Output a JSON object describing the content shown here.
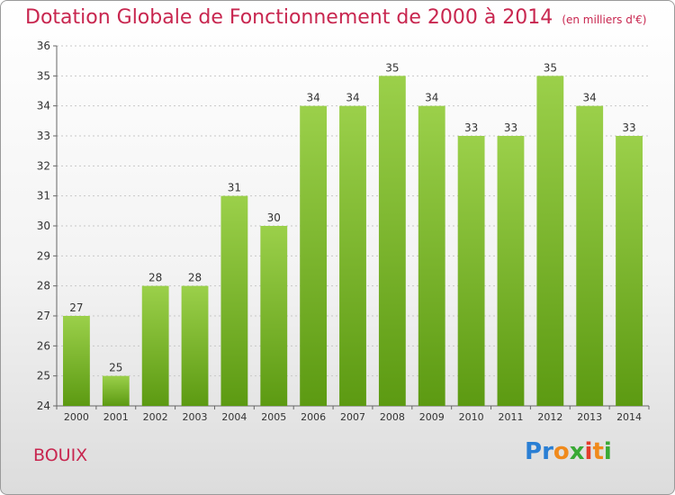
{
  "header": {
    "title": "Dotation Globale de Fonctionnement de 2000 à 2014",
    "unit": "(en milliers d'€)"
  },
  "footer": {
    "commune": "BOUIX",
    "logo": "Proxiti"
  },
  "colors": {
    "title": "#c8264f",
    "bar_top": "#9bd04a",
    "bar_bottom": "#5c9a12",
    "gridline": "#c8c8c8"
  },
  "chart_data": {
    "type": "bar",
    "title": "Dotation Globale de Fonctionnement de 2000 à 2014",
    "xlabel": "",
    "ylabel": "",
    "categories": [
      "2000",
      "2001",
      "2002",
      "2003",
      "2004",
      "2005",
      "2006",
      "2007",
      "2008",
      "2009",
      "2010",
      "2011",
      "2012",
      "2013",
      "2014"
    ],
    "values": [
      27,
      25,
      28,
      28,
      31,
      30,
      34,
      34,
      35,
      34,
      33,
      33,
      35,
      34,
      33
    ],
    "ylim": [
      24,
      36
    ],
    "yticks": [
      24,
      25,
      26,
      27,
      28,
      29,
      30,
      31,
      32,
      33,
      34,
      35,
      36
    ],
    "grid": true,
    "data_labels": true
  }
}
